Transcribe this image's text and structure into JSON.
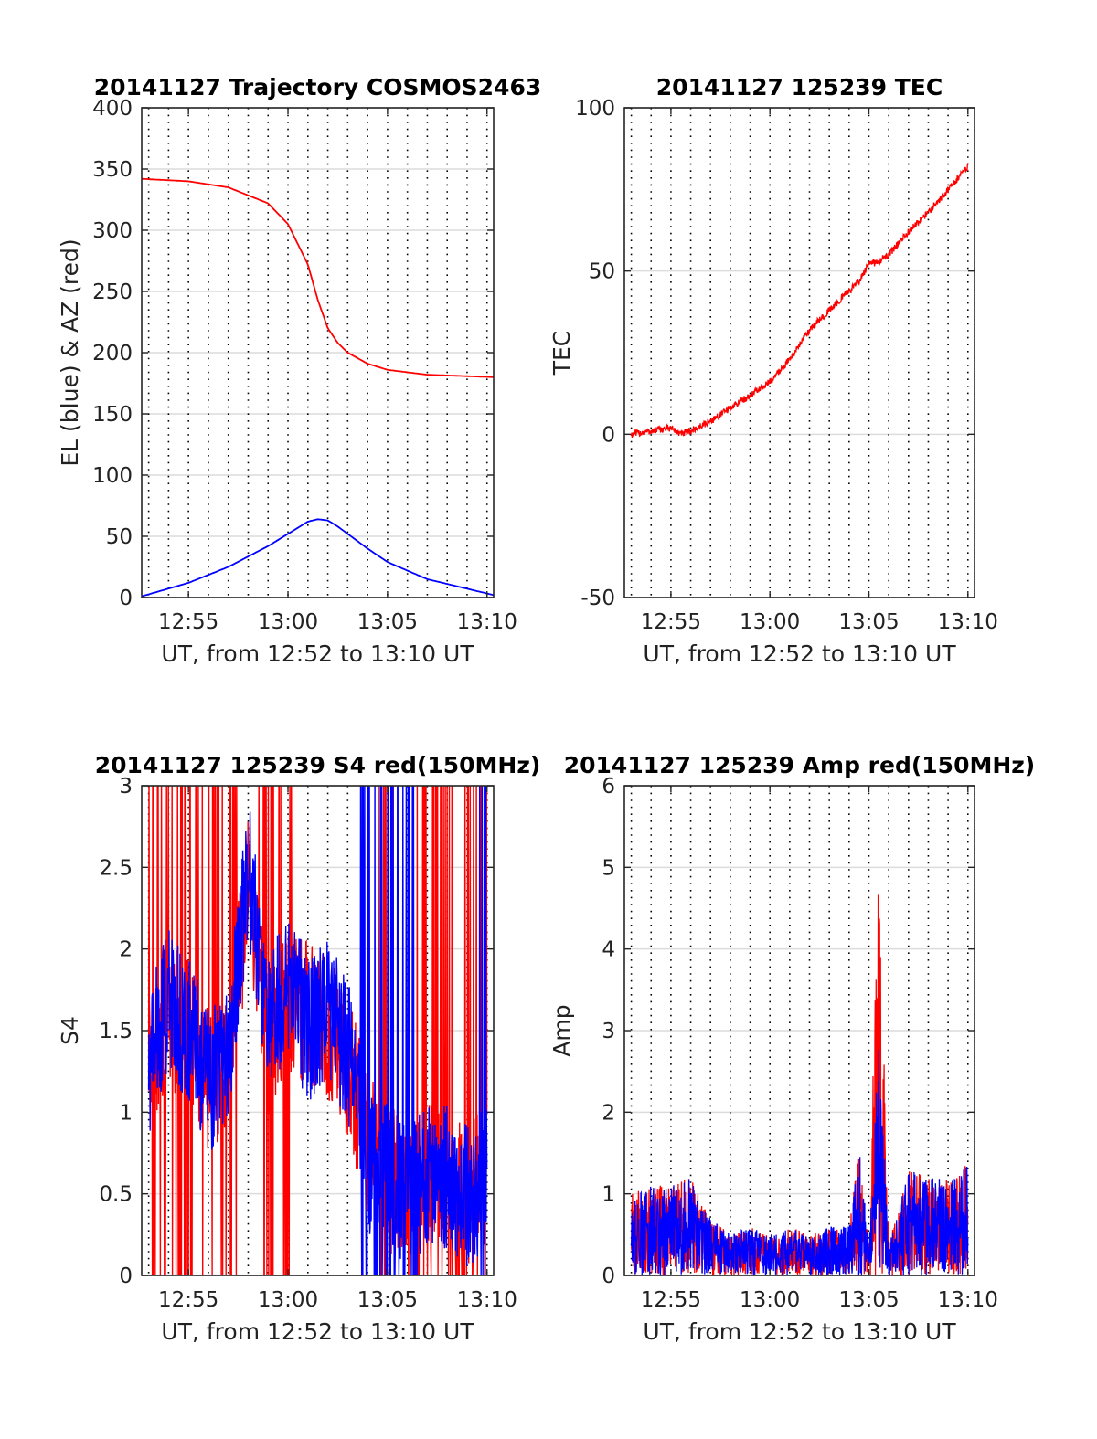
{
  "chart_data": [
    {
      "type": "line",
      "title": "20141127 Trajectory COSMOS2463",
      "xlabel": "UT, from 12:52 to 13:10 UT",
      "ylabel": "EL (blue) & AZ (red)",
      "xlim": [
        "12:52:39",
        "13:10:20"
      ],
      "ylim": [
        0,
        400
      ],
      "xticks": [
        "12:55",
        "13:00",
        "13:05",
        "13:10"
      ],
      "yticks": [
        "0",
        "50",
        "100",
        "150",
        "200",
        "250",
        "300",
        "350",
        "400"
      ],
      "grid": true,
      "x": [
        "12:52:39",
        "12:55",
        "12:57",
        "12:59",
        "13:00",
        "13:01",
        "13:01:30",
        "13:02",
        "13:02:30",
        "13:03",
        "13:04",
        "13:05",
        "13:07",
        "13:10:20"
      ],
      "series": [
        {
          "color": "#ff0000",
          "values": [
            342,
            340,
            335,
            322,
            305,
            272,
            243,
            220,
            208,
            200,
            191,
            186,
            182,
            180
          ]
        },
        {
          "color": "#0000ff",
          "values": [
            1,
            12,
            25,
            42,
            52,
            62,
            64,
            63,
            58,
            52,
            40,
            29,
            15,
            2
          ]
        }
      ]
    },
    {
      "type": "line",
      "title": "20141127 125239 TEC",
      "xlabel": "UT, from 12:52 to 13:10 UT",
      "ylabel": "TEC",
      "xlim": [
        "12:52:39",
        "13:10:20"
      ],
      "ylim": [
        -50,
        100
      ],
      "xticks": [
        "12:55",
        "13:00",
        "13:05",
        "13:10"
      ],
      "yticks": [
        "-50",
        "0",
        "50",
        "100"
      ],
      "grid": true,
      "x": [
        "12:53",
        "12:54",
        "12:55",
        "12:55:30",
        "12:56",
        "12:57",
        "12:58",
        "12:59",
        "13:00",
        "13:01",
        "13:02",
        "13:03",
        "13:04",
        "13:04:30",
        "13:05",
        "13:05:30",
        "13:06",
        "13:07",
        "13:08",
        "13:09",
        "13:10"
      ],
      "series": [
        {
          "color": "#ff0000",
          "values": [
            0,
            1,
            2,
            0,
            1,
            4,
            8,
            12,
            16,
            23,
            32,
            38,
            44,
            47,
            52,
            53,
            55,
            62,
            68,
            75,
            82
          ]
        }
      ]
    },
    {
      "type": "line",
      "title": "20141127 125239 S4 red(150MHz)",
      "xlabel": "UT, from 12:52 to 13:10 UT",
      "ylabel": "S4",
      "xlim": [
        "12:52:39",
        "13:10:20"
      ],
      "ylim": [
        0,
        3
      ],
      "xticks": [
        "12:55",
        "13:00",
        "13:05",
        "13:10"
      ],
      "yticks": [
        "0",
        "0.5",
        "1",
        "1.5",
        "2",
        "2.5",
        "3"
      ],
      "grid": true,
      "x": [
        "12:53",
        "12:54",
        "12:55",
        "12:56",
        "12:57",
        "12:58",
        "12:59",
        "13:00",
        "13:01",
        "13:02",
        "13:03",
        "13:04",
        "13:05",
        "13:06",
        "13:07",
        "13:08",
        "13:09",
        "13:10"
      ],
      "series": [
        {
          "color": "#ff0000",
          "values": [
            1.3,
            1.6,
            1.5,
            1.2,
            1.3,
            2.4,
            1.4,
            1.7,
            1.6,
            1.5,
            1.3,
            0.8,
            0.6,
            0.5,
            0.6,
            0.6,
            0.5,
            0.6
          ]
        },
        {
          "color": "#0000ff",
          "values": [
            1.3,
            1.7,
            1.5,
            1.2,
            1.3,
            2.5,
            1.5,
            1.8,
            1.5,
            1.6,
            1.4,
            0.7,
            0.6,
            0.5,
            0.6,
            0.6,
            0.5,
            0.6
          ]
        }
      ]
    },
    {
      "type": "line",
      "title": "20141127 125239 Amp red(150MHz)",
      "xlabel": "UT, from 12:52 to 13:10 UT",
      "ylabel": "Amp",
      "xlim": [
        "12:52:39",
        "13:10:20"
      ],
      "ylim": [
        0,
        6
      ],
      "xticks": [
        "12:55",
        "13:00",
        "13:05",
        "13:10"
      ],
      "yticks": [
        "0",
        "1",
        "2",
        "3",
        "4",
        "5",
        "6"
      ],
      "grid": true,
      "x": [
        "12:53",
        "12:54",
        "12:55",
        "12:56",
        "12:57",
        "12:58",
        "12:59",
        "13:00",
        "13:01",
        "13:02",
        "13:03",
        "13:04",
        "13:04:30",
        "13:05",
        "13:05:30",
        "13:06",
        "13:07",
        "13:08",
        "13:09",
        "13:10"
      ],
      "series": [
        {
          "color": "#ff0000",
          "values": [
            1.0,
            1.1,
            1.1,
            1.2,
            0.7,
            0.5,
            0.6,
            0.5,
            0.6,
            0.5,
            0.6,
            0.6,
            1.6,
            0.4,
            5.3,
            0.4,
            1.3,
            1.2,
            1.2,
            1.4
          ]
        },
        {
          "color": "#0000ff",
          "values": [
            1.0,
            1.1,
            1.1,
            1.2,
            0.7,
            0.5,
            0.6,
            0.5,
            0.6,
            0.5,
            0.6,
            0.6,
            1.6,
            0.4,
            3.0,
            0.4,
            1.3,
            1.2,
            1.2,
            1.4
          ]
        }
      ]
    }
  ]
}
